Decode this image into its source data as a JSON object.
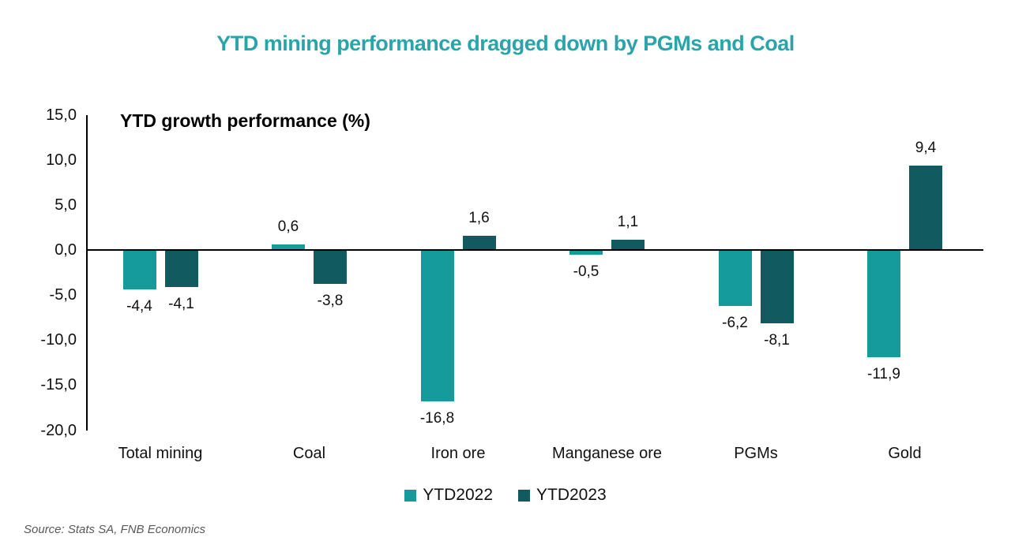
{
  "title": {
    "text": "YTD mining performance dragged down by PGMs and Coal",
    "color": "#29A5AA"
  },
  "source": "Source: Stats SA, FNB Economics",
  "chart_data": {
    "type": "bar",
    "title": "YTD mining performance dragged down by PGMs and Coal",
    "axis_title": "YTD growth performance (%)",
    "categories": [
      "Total mining",
      "Coal",
      "Iron ore",
      "Manganese ore",
      "PGMs",
      "Gold"
    ],
    "series": [
      {
        "name": "YTD2022",
        "color": "#169B9D",
        "values": [
          -4.4,
          0.6,
          -16.8,
          -0.5,
          -6.2,
          -11.9
        ],
        "labels": [
          "-4,4",
          "0,6",
          "-16,8",
          "-0,5",
          "-6,2",
          "-11,9"
        ]
      },
      {
        "name": "YTD2023",
        "color": "#115A5F",
        "values": [
          -4.1,
          -3.8,
          1.6,
          1.1,
          -8.1,
          9.4
        ],
        "labels": [
          "-4,1",
          "-3,8",
          "1,6",
          "1,1",
          "-8,1",
          "9,4"
        ]
      }
    ],
    "ylim": [
      -20,
      15
    ],
    "yticks": [
      15,
      10,
      5,
      0,
      -5,
      -10,
      -15,
      -20
    ],
    "ytick_labels": [
      "15,0",
      "10,0",
      "5,0",
      "0,0",
      "-5,0",
      "-10,0",
      "-15,0",
      "-20,0"
    ],
    "grid": false,
    "legend_position": "bottom",
    "decimal_separator": ","
  }
}
